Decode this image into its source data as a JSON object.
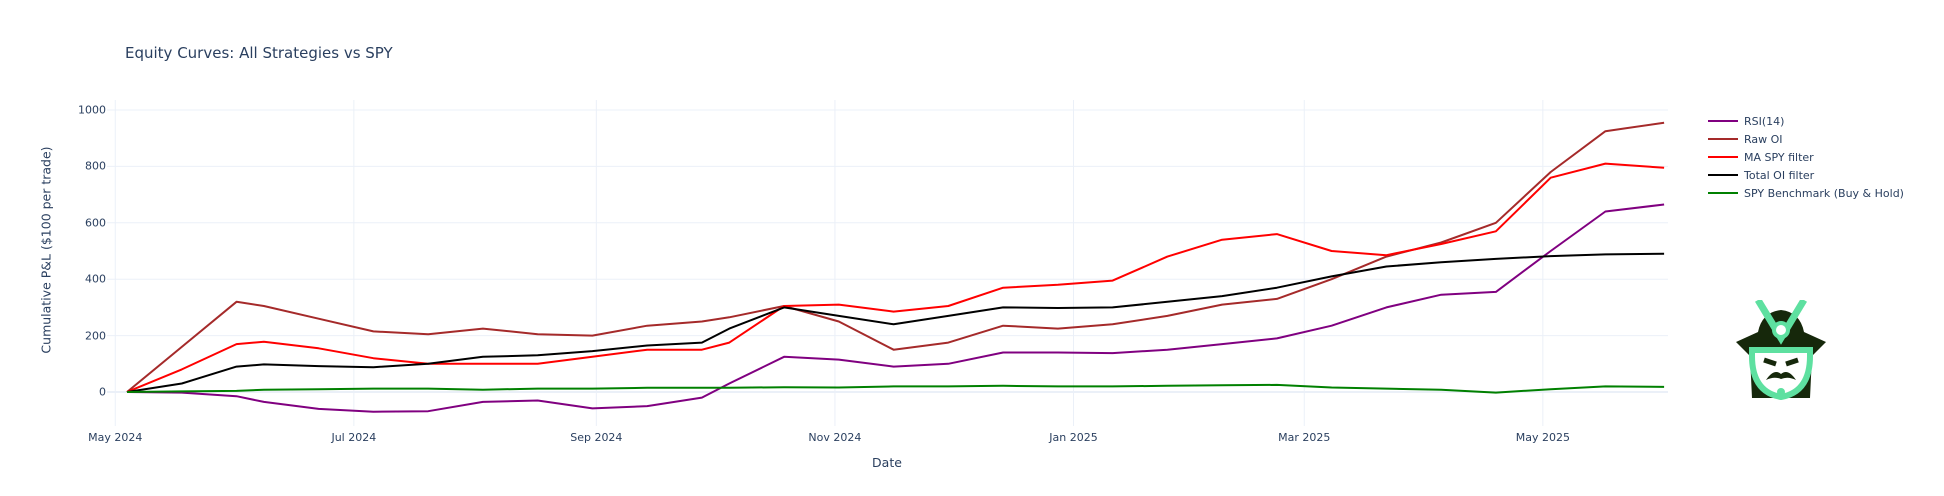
{
  "chart_data": {
    "type": "line",
    "title": "Equity Curves: All Strategies vs SPY",
    "xlabel": "Date",
    "ylabel": "Cumulative P&L ($100 per trade)",
    "ylim": [
      -120,
      1010
    ],
    "xlim": [
      "2024-05-04",
      "2025-06-02"
    ],
    "grid": true,
    "legend_position": "right",
    "x_ticks": [
      "May 2024",
      "Jul 2024",
      "Sep 2024",
      "Nov 2024",
      "Jan 2025",
      "Mar 2025",
      "May 2025"
    ],
    "y_ticks": [
      0,
      200,
      400,
      600,
      800,
      1000
    ],
    "x": [
      "2024-05-04",
      "2024-05-18",
      "2024-06-01",
      "2024-06-08",
      "2024-06-22",
      "2024-07-06",
      "2024-07-20",
      "2024-08-03",
      "2024-08-17",
      "2024-08-31",
      "2024-09-14",
      "2024-09-28",
      "2024-10-05",
      "2024-10-19",
      "2024-11-02",
      "2024-11-16",
      "2024-11-30",
      "2024-12-14",
      "2024-12-28",
      "2025-01-11",
      "2025-01-25",
      "2025-02-08",
      "2025-02-22",
      "2025-03-08",
      "2025-03-22",
      "2025-04-05",
      "2025-04-19",
      "2025-05-03",
      "2025-05-17",
      "2025-06-01"
    ],
    "series": [
      {
        "name": "RSI(14)",
        "color": "#800080",
        "values": [
          0,
          -2,
          -15,
          -35,
          -60,
          -70,
          -68,
          -35,
          -30,
          -58,
          -50,
          -20,
          30,
          125,
          115,
          90,
          100,
          140,
          140,
          138,
          150,
          170,
          190,
          235,
          300,
          345,
          355,
          500,
          640,
          665
        ]
      },
      {
        "name": "Raw OI",
        "color": "#a52a2a",
        "values": [
          0,
          160,
          320,
          305,
          260,
          215,
          205,
          225,
          205,
          200,
          235,
          250,
          265,
          305,
          250,
          150,
          175,
          235,
          225,
          240,
          270,
          310,
          330,
          400,
          480,
          530,
          600,
          780,
          925,
          955
        ]
      },
      {
        "name": "MA SPY filter",
        "color": "#ff0000",
        "values": [
          0,
          80,
          170,
          178,
          155,
          120,
          100,
          100,
          100,
          125,
          150,
          150,
          175,
          305,
          310,
          285,
          305,
          370,
          380,
          395,
          480,
          540,
          560,
          500,
          485,
          525,
          570,
          760,
          810,
          795
        ]
      },
      {
        "name": "Total OI filter",
        "color": "#000000",
        "values": [
          0,
          30,
          90,
          98,
          92,
          88,
          100,
          125,
          130,
          145,
          165,
          175,
          225,
          300,
          270,
          240,
          270,
          300,
          298,
          300,
          320,
          340,
          370,
          410,
          445,
          460,
          472,
          482,
          488,
          490
        ]
      },
      {
        "name": "SPY Benchmark (Buy & Hold)",
        "color": "#008000",
        "values": [
          0,
          2,
          4,
          8,
          10,
          12,
          12,
          8,
          12,
          12,
          15,
          15,
          15,
          17,
          16,
          20,
          20,
          22,
          20,
          20,
          22,
          24,
          25,
          16,
          12,
          8,
          -2,
          10,
          20,
          18
        ]
      }
    ]
  },
  "legend": {
    "items": [
      {
        "label": "RSI(14)",
        "color": "#800080"
      },
      {
        "label": "Raw OI",
        "color": "#a52a2a"
      },
      {
        "label": "MA SPY filter",
        "color": "#ff0000"
      },
      {
        "label": "Total OI filter",
        "color": "#000000"
      },
      {
        "label": "SPY Benchmark (Buy & Hold)",
        "color": "#008000"
      }
    ]
  },
  "logo": {
    "icon": "samurai-helmet-icon",
    "dark": "#16280b",
    "accent": "#5ee0a0"
  },
  "colors": {
    "grid": "#ebf0f8",
    "text": "#2a3f5f",
    "zero_line": "#ebf0f8"
  }
}
